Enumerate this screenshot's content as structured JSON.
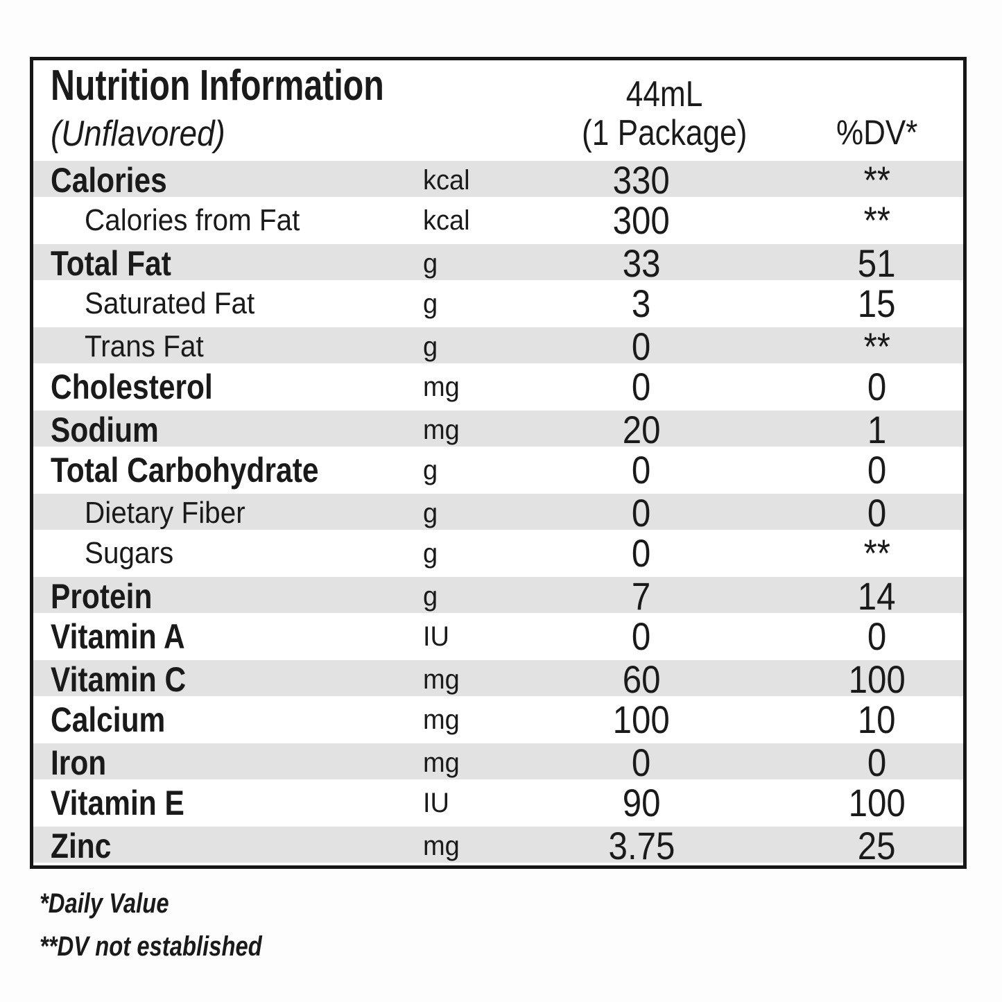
{
  "header": {
    "title": "Nutrition Information",
    "subtitle": "(Unflavored)",
    "serving_line1": "44mL",
    "serving_line2": "(1 Package)",
    "dv_label": "%DV*"
  },
  "colors": {
    "stripe": "#e2e2e2",
    "border": "#161616",
    "text": "#1a1a1a"
  },
  "rows": [
    {
      "label": "Calories",
      "unit": "kcal",
      "amount": "330",
      "dv": "**",
      "indent": false,
      "shaded": true
    },
    {
      "label": "Calories from Fat",
      "unit": "kcal",
      "amount": "300",
      "dv": "**",
      "indent": true,
      "shaded": false
    },
    {
      "label": "Total Fat",
      "unit": "g",
      "amount": "33",
      "dv": "51",
      "indent": false,
      "shaded": true
    },
    {
      "label": "Saturated Fat",
      "unit": "g",
      "amount": "3",
      "dv": "15",
      "indent": true,
      "shaded": false
    },
    {
      "label": "Trans Fat",
      "unit": "g",
      "amount": "0",
      "dv": "**",
      "indent": true,
      "shaded": true
    },
    {
      "label": "Cholesterol",
      "unit": "mg",
      "amount": "0",
      "dv": "0",
      "indent": false,
      "shaded": false
    },
    {
      "label": "Sodium",
      "unit": "mg",
      "amount": "20",
      "dv": "1",
      "indent": false,
      "shaded": true
    },
    {
      "label": "Total Carbohydrate",
      "unit": "g",
      "amount": "0",
      "dv": "0",
      "indent": false,
      "shaded": false
    },
    {
      "label": "Dietary Fiber",
      "unit": "g",
      "amount": "0",
      "dv": "0",
      "indent": true,
      "shaded": true
    },
    {
      "label": "Sugars",
      "unit": "g",
      "amount": "0",
      "dv": "**",
      "indent": true,
      "shaded": false
    },
    {
      "label": "Protein",
      "unit": "g",
      "amount": "7",
      "dv": "14",
      "indent": false,
      "shaded": true
    },
    {
      "label": "Vitamin A",
      "unit": "IU",
      "amount": "0",
      "dv": "0",
      "indent": false,
      "shaded": false
    },
    {
      "label": "Vitamin C",
      "unit": "mg",
      "amount": "60",
      "dv": "100",
      "indent": false,
      "shaded": true
    },
    {
      "label": "Calcium",
      "unit": "mg",
      "amount": "100",
      "dv": "10",
      "indent": false,
      "shaded": false
    },
    {
      "label": "Iron",
      "unit": "mg",
      "amount": "0",
      "dv": "0",
      "indent": false,
      "shaded": true
    },
    {
      "label": "Vitamin E",
      "unit": "IU",
      "amount": "90",
      "dv": "100",
      "indent": false,
      "shaded": false
    },
    {
      "label": "Zinc",
      "unit": "mg",
      "amount": "3.75",
      "dv": "25",
      "indent": false,
      "shaded": true
    }
  ],
  "footnotes": [
    "*Daily Value",
    "**DV not established"
  ]
}
